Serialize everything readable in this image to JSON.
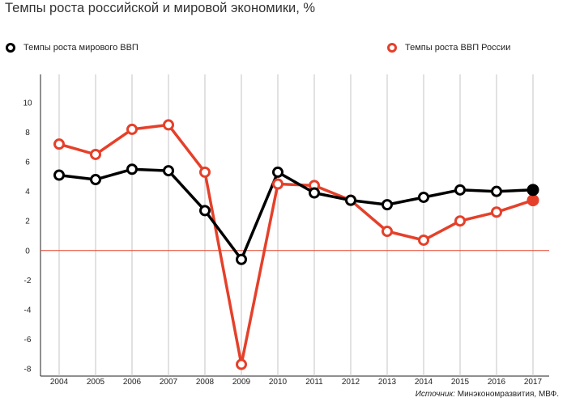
{
  "title": "Темпы роста российской и мировой экономики, %",
  "legend": [
    {
      "label": "Темпы роста мирового ВВП",
      "color": "#000000"
    },
    {
      "label": "Темпы роста ВВП России",
      "color": "#e5402a"
    }
  ],
  "source": {
    "prefix": "Источник:",
    "text": " Минэкономразвития, МВФ."
  },
  "chart_data": {
    "type": "line",
    "x": [
      "2004",
      "2005",
      "2006",
      "2007",
      "2008",
      "2009",
      "2010",
      "2011",
      "2012",
      "2013",
      "2014",
      "2015",
      "2016",
      "2017"
    ],
    "series": [
      {
        "name": "Темпы роста мирового ВВП",
        "color": "#000000",
        "values": [
          5.1,
          4.8,
          5.5,
          5.4,
          2.7,
          -0.6,
          5.3,
          3.9,
          3.4,
          3.1,
          3.6,
          4.1,
          4.0,
          4.1
        ]
      },
      {
        "name": "Темпы роста ВВП России",
        "color": "#e5402a",
        "values": [
          7.2,
          6.5,
          8.2,
          8.5,
          5.3,
          -7.7,
          4.5,
          4.4,
          3.4,
          1.3,
          0.7,
          2.0,
          2.6,
          3.4
        ]
      }
    ],
    "yticks": [
      10,
      8,
      6,
      4,
      2,
      0,
      -2,
      -4,
      -6,
      -8
    ],
    "ylim": [
      -8,
      10
    ],
    "zero_line_color": "#e5402a",
    "grid": "vertical"
  }
}
